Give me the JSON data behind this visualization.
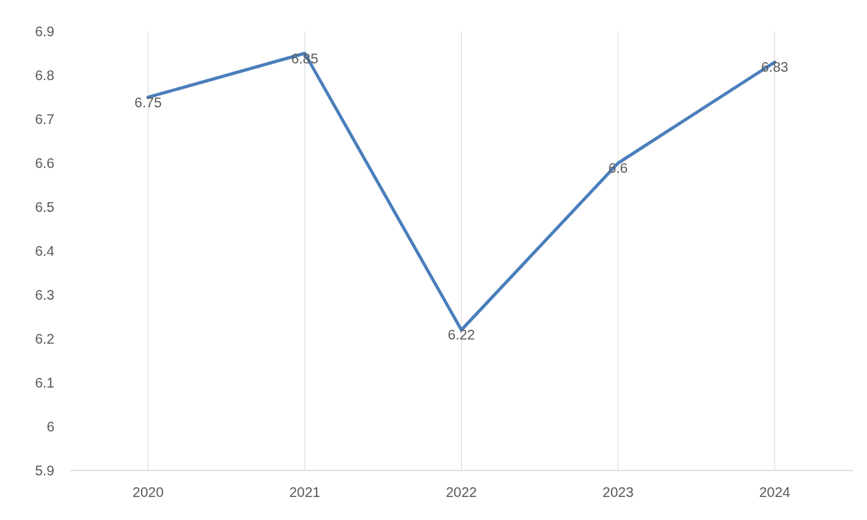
{
  "chart_data": {
    "type": "line",
    "categories": [
      "2020",
      "2021",
      "2022",
      "2023",
      "2024"
    ],
    "series": [
      {
        "color": "#4a7ebb",
        "values": [
          6.75,
          6.85,
          6.22,
          6.6,
          6.83
        ]
      }
    ],
    "ylim": [
      5.9,
      6.9
    ],
    "yticks": [
      5.9,
      6,
      6.1,
      6.2,
      6.3,
      6.4,
      6.5,
      6.6,
      6.7,
      6.8,
      6.9
    ],
    "grid": "x",
    "data_labels": true
  }
}
